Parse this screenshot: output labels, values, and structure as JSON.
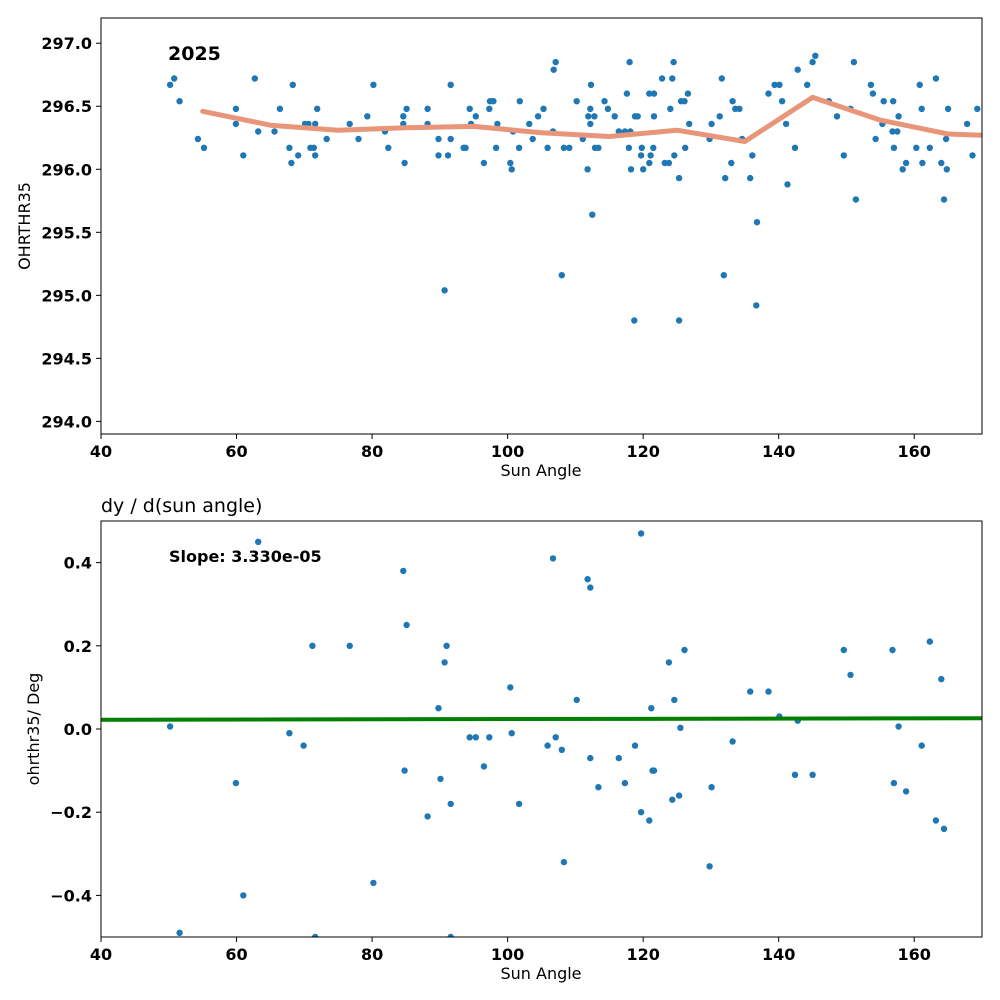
{
  "colors": {
    "points": "#1f77b4",
    "trend": "#e8957a",
    "fit": "#007f00",
    "frame": "#000000"
  },
  "chart_data": [
    {
      "type": "scatter",
      "title": "",
      "annotation": "2025",
      "xlabel": "Sun Angle",
      "ylabel": "OHRTHR35",
      "xlim": [
        40,
        170
      ],
      "ylim": [
        293.9,
        297.2
      ],
      "xticks": [
        40,
        60,
        80,
        100,
        120,
        140,
        160
      ],
      "yticks": [
        294.0,
        294.5,
        295.0,
        295.5,
        296.0,
        296.5,
        297.0
      ],
      "ytick_labels": [
        "294.0",
        "294.5",
        "295.0",
        "295.5",
        "296.0",
        "296.5",
        "297.0"
      ],
      "grid": false,
      "points": [
        [
          50.2,
          296.67
        ],
        [
          50.8,
          296.72
        ],
        [
          51.6,
          296.54
        ],
        [
          54.3,
          296.24
        ],
        [
          55.2,
          296.17
        ],
        [
          59.9,
          296.36
        ],
        [
          59.9,
          296.48
        ],
        [
          61.0,
          296.11
        ],
        [
          62.7,
          296.72
        ],
        [
          63.2,
          296.3
        ],
        [
          65.6,
          296.3
        ],
        [
          66.4,
          296.48
        ],
        [
          67.8,
          296.17
        ],
        [
          68.1,
          296.05
        ],
        [
          68.3,
          296.67
        ],
        [
          69.1,
          296.11
        ],
        [
          70.1,
          296.36
        ],
        [
          70.6,
          296.36
        ],
        [
          70.9,
          296.17
        ],
        [
          71.4,
          296.17
        ],
        [
          71.6,
          296.36
        ],
        [
          71.6,
          296.11
        ],
        [
          71.9,
          296.48
        ],
        [
          73.3,
          296.24
        ],
        [
          76.7,
          296.36
        ],
        [
          78.0,
          296.24
        ],
        [
          79.3,
          296.42
        ],
        [
          80.2,
          296.67
        ],
        [
          81.9,
          296.3
        ],
        [
          82.4,
          296.17
        ],
        [
          84.6,
          296.36
        ],
        [
          84.6,
          296.42
        ],
        [
          84.8,
          296.05
        ],
        [
          85.1,
          296.48
        ],
        [
          88.2,
          296.48
        ],
        [
          88.2,
          296.36
        ],
        [
          89.8,
          296.11
        ],
        [
          89.8,
          296.24
        ],
        [
          90.7,
          295.04
        ],
        [
          91.2,
          296.11
        ],
        [
          91.6,
          296.67
        ],
        [
          91.6,
          296.24
        ],
        [
          93.5,
          296.17
        ],
        [
          93.8,
          296.17
        ],
        [
          94.4,
          296.48
        ],
        [
          94.6,
          296.36
        ],
        [
          95.3,
          296.42
        ],
        [
          96.5,
          296.05
        ],
        [
          97.3,
          296.48
        ],
        [
          97.4,
          296.54
        ],
        [
          97.9,
          296.54
        ],
        [
          98.3,
          296.17
        ],
        [
          98.5,
          296.36
        ],
        [
          100.4,
          296.05
        ],
        [
          100.6,
          296.0
        ],
        [
          100.8,
          296.3
        ],
        [
          101.7,
          296.17
        ],
        [
          101.8,
          296.54
        ],
        [
          103.2,
          296.36
        ],
        [
          103.7,
          296.24
        ],
        [
          104.5,
          296.42
        ],
        [
          105.3,
          296.48
        ],
        [
          105.9,
          296.17
        ],
        [
          106.7,
          296.3
        ],
        [
          106.8,
          296.79
        ],
        [
          107.1,
          296.85
        ],
        [
          108.0,
          295.16
        ],
        [
          108.3,
          296.17
        ],
        [
          109.1,
          296.17
        ],
        [
          110.2,
          296.54
        ],
        [
          111.1,
          296.24
        ],
        [
          111.8,
          296.0
        ],
        [
          111.9,
          296.42
        ],
        [
          112.2,
          296.36
        ],
        [
          112.2,
          296.48
        ],
        [
          112.3,
          296.67
        ],
        [
          112.5,
          295.64
        ],
        [
          112.8,
          296.42
        ],
        [
          112.9,
          296.17
        ],
        [
          113.4,
          296.17
        ],
        [
          114.3,
          296.54
        ],
        [
          114.8,
          296.48
        ],
        [
          115.8,
          296.42
        ],
        [
          116.4,
          296.3
        ],
        [
          117.3,
          296.3
        ],
        [
          117.6,
          296.6
        ],
        [
          117.9,
          296.17
        ],
        [
          118.0,
          296.85
        ],
        [
          118.1,
          296.3
        ],
        [
          118.2,
          296.0
        ],
        [
          118.7,
          294.8
        ],
        [
          118.8,
          296.42
        ],
        [
          119.2,
          296.42
        ],
        [
          119.7,
          296.11
        ],
        [
          119.8,
          296.17
        ],
        [
          120.0,
          296.0
        ],
        [
          120.9,
          296.6
        ],
        [
          120.9,
          296.05
        ],
        [
          121.1,
          296.11
        ],
        [
          121.5,
          296.17
        ],
        [
          121.6,
          296.6
        ],
        [
          121.6,
          296.42
        ],
        [
          122.8,
          296.72
        ],
        [
          123.2,
          296.05
        ],
        [
          123.8,
          296.05
        ],
        [
          124.0,
          296.48
        ],
        [
          124.3,
          296.72
        ],
        [
          124.5,
          296.85
        ],
        [
          124.6,
          296.11
        ],
        [
          125.3,
          294.8
        ],
        [
          125.3,
          295.93
        ],
        [
          125.6,
          296.54
        ],
        [
          126.1,
          296.54
        ],
        [
          126.2,
          296.17
        ],
        [
          126.6,
          296.6
        ],
        [
          126.8,
          296.36
        ],
        [
          129.8,
          296.24
        ],
        [
          130.1,
          296.36
        ],
        [
          131.3,
          296.42
        ],
        [
          131.6,
          296.72
        ],
        [
          131.9,
          295.16
        ],
        [
          132.1,
          295.93
        ],
        [
          133.0,
          296.05
        ],
        [
          133.2,
          296.54
        ],
        [
          133.6,
          296.48
        ],
        [
          134.2,
          296.48
        ],
        [
          134.6,
          296.24
        ],
        [
          135.8,
          295.93
        ],
        [
          136.1,
          296.11
        ],
        [
          136.7,
          294.92
        ],
        [
          136.8,
          295.58
        ],
        [
          138.5,
          296.6
        ],
        [
          139.4,
          296.67
        ],
        [
          140.1,
          296.67
        ],
        [
          140.5,
          296.54
        ],
        [
          141.1,
          296.36
        ],
        [
          141.3,
          295.88
        ],
        [
          142.4,
          296.17
        ],
        [
          142.8,
          296.79
        ],
        [
          144.2,
          296.67
        ],
        [
          145.0,
          296.85
        ],
        [
          145.4,
          296.9
        ],
        [
          147.4,
          296.54
        ],
        [
          148.6,
          296.42
        ],
        [
          149.6,
          296.11
        ],
        [
          150.6,
          296.48
        ],
        [
          151.1,
          296.85
        ],
        [
          151.4,
          295.76
        ],
        [
          153.6,
          296.67
        ],
        [
          153.9,
          296.6
        ],
        [
          154.3,
          296.24
        ],
        [
          155.3,
          296.36
        ],
        [
          155.5,
          296.54
        ],
        [
          156.8,
          296.3
        ],
        [
          156.9,
          296.54
        ],
        [
          157.0,
          296.17
        ],
        [
          157.5,
          296.3
        ],
        [
          157.7,
          296.42
        ],
        [
          158.3,
          296.0
        ],
        [
          158.8,
          296.05
        ],
        [
          160.3,
          296.17
        ],
        [
          160.8,
          296.67
        ],
        [
          161.1,
          296.48
        ],
        [
          161.2,
          296.05
        ],
        [
          162.3,
          296.17
        ],
        [
          163.2,
          296.72
        ],
        [
          164.0,
          296.05
        ],
        [
          164.4,
          295.76
        ],
        [
          164.7,
          296.24
        ],
        [
          164.8,
          296.0
        ],
        [
          165.0,
          296.48
        ],
        [
          167.8,
          296.36
        ],
        [
          168.6,
          296.11
        ],
        [
          169.3,
          296.48
        ]
      ],
      "trend_line": [
        [
          55,
          296.46
        ],
        [
          65,
          296.35
        ],
        [
          75,
          296.31
        ],
        [
          85,
          296.33
        ],
        [
          95,
          296.34
        ],
        [
          105,
          296.29
        ],
        [
          115,
          296.26
        ],
        [
          125,
          296.31
        ],
        [
          135,
          296.22
        ],
        [
          145,
          296.57
        ],
        [
          155,
          296.39
        ],
        [
          165,
          296.28
        ],
        [
          170,
          296.27
        ]
      ]
    },
    {
      "type": "scatter",
      "title": "dy / d(sun angle)",
      "annotation": "Slope: 3.330e-05",
      "xlabel": "Sun Angle",
      "ylabel": "ohrthr35/ Deg",
      "xlim": [
        40,
        170
      ],
      "ylim": [
        -0.5,
        0.5
      ],
      "xticks": [
        40,
        60,
        80,
        100,
        120,
        140,
        160
      ],
      "yticks": [
        -0.4,
        -0.2,
        0.0,
        0.2,
        0.4
      ],
      "ytick_labels": [
        "−0.4",
        "−0.2",
        "0.0",
        "0.2",
        "0.4"
      ],
      "grid": false,
      "points": [
        [
          50.2,
          0.006
        ],
        [
          51.6,
          -0.49
        ],
        [
          59.9,
          -0.13
        ],
        [
          61.0,
          -0.4
        ],
        [
          63.2,
          0.45
        ],
        [
          67.8,
          -0.01
        ],
        [
          69.9,
          -0.04
        ],
        [
          71.2,
          0.2
        ],
        [
          71.6,
          -0.5
        ],
        [
          76.7,
          0.2
        ],
        [
          80.2,
          -0.37
        ],
        [
          84.6,
          0.38
        ],
        [
          84.8,
          -0.1
        ],
        [
          85.1,
          0.25
        ],
        [
          88.2,
          -0.21
        ],
        [
          89.8,
          0.05
        ],
        [
          90.1,
          -0.12
        ],
        [
          90.7,
          0.16
        ],
        [
          91.0,
          0.2
        ],
        [
          91.6,
          -0.18
        ],
        [
          91.6,
          -0.5
        ],
        [
          94.4,
          -0.02
        ],
        [
          95.3,
          -0.02
        ],
        [
          96.5,
          -0.09
        ],
        [
          97.3,
          -0.02
        ],
        [
          100.4,
          0.1
        ],
        [
          100.6,
          -0.01
        ],
        [
          101.7,
          -0.18
        ],
        [
          105.9,
          -0.04
        ],
        [
          106.7,
          0.41
        ],
        [
          107.1,
          -0.02
        ],
        [
          108.0,
          -0.05
        ],
        [
          108.3,
          -0.32
        ],
        [
          110.2,
          0.07
        ],
        [
          111.8,
          0.36
        ],
        [
          112.2,
          0.34
        ],
        [
          112.2,
          -0.07
        ],
        [
          113.4,
          -0.14
        ],
        [
          116.4,
          -0.07
        ],
        [
          117.3,
          -0.13
        ],
        [
          118.8,
          -0.04
        ],
        [
          119.7,
          0.47
        ],
        [
          119.7,
          -0.2
        ],
        [
          120.9,
          -0.22
        ],
        [
          121.2,
          0.05
        ],
        [
          121.4,
          -0.1
        ],
        [
          121.6,
          -0.1
        ],
        [
          123.8,
          0.16
        ],
        [
          124.3,
          -0.17
        ],
        [
          124.6,
          0.07
        ],
        [
          125.3,
          -0.16
        ],
        [
          125.5,
          0.003
        ],
        [
          126.1,
          0.19
        ],
        [
          129.8,
          -0.33
        ],
        [
          130.1,
          -0.14
        ],
        [
          133.2,
          -0.03
        ],
        [
          135.8,
          0.09
        ],
        [
          138.5,
          0.09
        ],
        [
          140.1,
          0.03
        ],
        [
          142.4,
          -0.11
        ],
        [
          142.8,
          0.02
        ],
        [
          145.0,
          -0.11
        ],
        [
          149.6,
          0.19
        ],
        [
          150.6,
          0.13
        ],
        [
          156.8,
          0.19
        ],
        [
          157.0,
          -0.13
        ],
        [
          157.7,
          0.006
        ],
        [
          158.8,
          -0.15
        ],
        [
          161.1,
          -0.04
        ],
        [
          162.3,
          0.21
        ],
        [
          163.2,
          -0.22
        ],
        [
          164.0,
          0.12
        ],
        [
          164.4,
          -0.24
        ]
      ],
      "fit_line": [
        [
          40,
          0.022
        ],
        [
          170,
          0.026
        ]
      ]
    }
  ]
}
